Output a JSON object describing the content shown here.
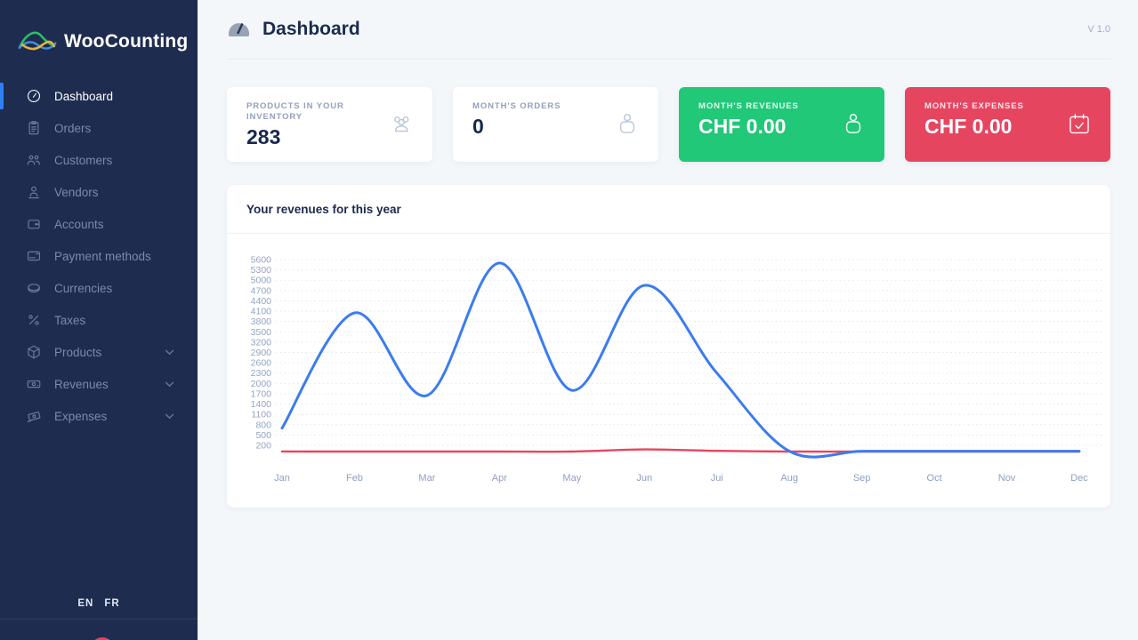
{
  "app": {
    "name": "WooCounting",
    "version": "V 1.0"
  },
  "sidebar": {
    "logo_text": "WooCounting",
    "items": [
      {
        "label": "Dashboard",
        "icon": "dashboard-gauge-icon",
        "active": true,
        "expandable": false
      },
      {
        "label": "Orders",
        "icon": "orders-clipboard-icon",
        "active": false,
        "expandable": false
      },
      {
        "label": "Customers",
        "icon": "customers-group-icon",
        "active": false,
        "expandable": false
      },
      {
        "label": "Vendors",
        "icon": "vendor-person-icon",
        "active": false,
        "expandable": false
      },
      {
        "label": "Accounts",
        "icon": "accounts-wallet-icon",
        "active": false,
        "expandable": false
      },
      {
        "label": "Payment methods",
        "icon": "payment-card-icon",
        "active": false,
        "expandable": false
      },
      {
        "label": "Currencies",
        "icon": "currency-coin-icon",
        "active": false,
        "expandable": false
      },
      {
        "label": "Taxes",
        "icon": "taxes-percent-icon",
        "active": false,
        "expandable": false
      },
      {
        "label": "Products",
        "icon": "products-box-icon",
        "active": false,
        "expandable": true
      },
      {
        "label": "Revenues",
        "icon": "revenues-banknote-icon",
        "active": false,
        "expandable": true
      },
      {
        "label": "Expenses",
        "icon": "expenses-money-icon",
        "active": false,
        "expandable": true
      }
    ],
    "languages": [
      "EN",
      "FR"
    ]
  },
  "header": {
    "title": "Dashboard",
    "icon": "gauge-badge-icon",
    "version": "V 1.0"
  },
  "cards": [
    {
      "label": "Products in your inventory",
      "value": "283",
      "icon": "users-group-icon",
      "variant": "light",
      "bg": "#ffffff"
    },
    {
      "label": "Month's orders",
      "value": "0",
      "icon": "money-bag-icon",
      "variant": "light",
      "bg": "#ffffff"
    },
    {
      "label": "Month's revenues",
      "value": "CHF 0.00",
      "icon": "money-bag-icon",
      "variant": "green",
      "bg": "#20c878"
    },
    {
      "label": "Month's expenses",
      "value": "CHF 0.00",
      "icon": "calendar-check-icon",
      "variant": "red",
      "bg": "#e64560"
    }
  ],
  "chart_card": {
    "title": "Your revenues for this year"
  },
  "chart_data": {
    "type": "line",
    "title": "Your revenues for this year",
    "x": [
      "Jan",
      "Feb",
      "Mar",
      "Apr",
      "May",
      "Jun",
      "Jui",
      "Aug",
      "Sep",
      "Oct",
      "Nov",
      "Dec"
    ],
    "series": [
      {
        "name": "revenues",
        "color": "#3b7bf0",
        "values": [
          700,
          4050,
          1650,
          5500,
          1800,
          4850,
          2300,
          30,
          30,
          30,
          30,
          30
        ]
      },
      {
        "name": "expenses",
        "color": "#e9445a",
        "values": [
          20,
          20,
          20,
          20,
          20,
          80,
          40,
          20,
          20,
          20,
          20,
          20
        ]
      }
    ],
    "ylim": [
      200,
      5600
    ],
    "yticks": [
      5600,
      5300,
      5000,
      4700,
      4400,
      4100,
      3800,
      3500,
      3200,
      2900,
      2600,
      2300,
      2000,
      1700,
      1400,
      1100,
      800,
      500,
      200
    ],
    "grid": "horizontal-dotted",
    "gridline_color": "#e3e8f1",
    "axis_label_color": "#93a4c3",
    "legend": "none",
    "smooth": true
  }
}
